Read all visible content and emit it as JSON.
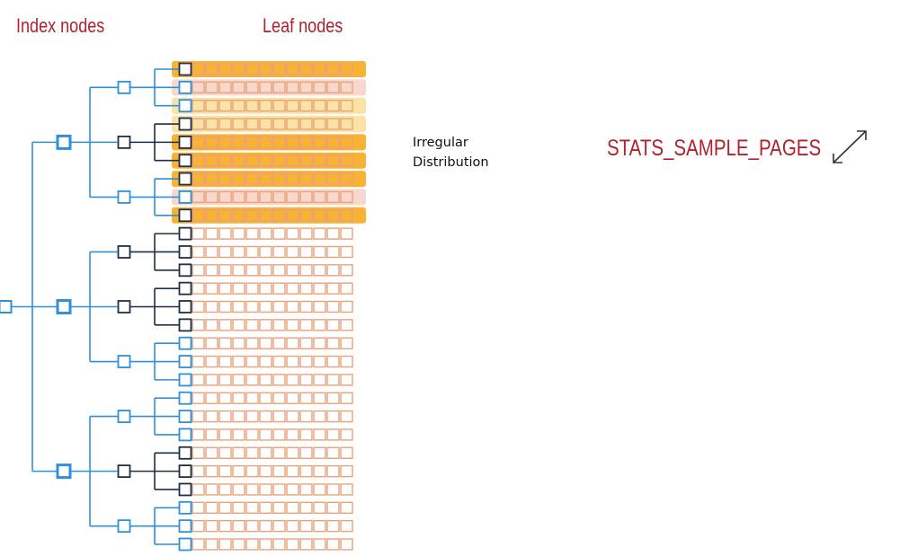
{
  "labels": {
    "index_nodes": "Index nodes",
    "leaf_nodes": "Leaf nodes",
    "parameter": "STATS_SAMPLE_PAGES",
    "note_line1": "Irregular",
    "note_line2": "Distribution"
  },
  "colors": {
    "label_red": "#b0232e",
    "tree_blue": "#2f8fd8",
    "tree_dark": "#1f2f45",
    "leaf_outline": "#e8a27a",
    "highlight_strong": "#f9b233",
    "highlight_light": "#fde2a6",
    "highlight_pink": "#f8d8cc"
  },
  "tree": {
    "root_count": 1,
    "level1_count": 3,
    "level2_per_parent": 3,
    "leaves_per_parent": 3,
    "cells_per_leaf": 12,
    "level2_dark": [
      false,
      true,
      false,
      true,
      true,
      false,
      false,
      true,
      false
    ],
    "leaf_highlight": [
      "strong",
      "pink",
      "light",
      "light",
      "strong",
      "strong",
      "strong",
      "pink",
      "strong",
      "none",
      "none",
      "none",
      "none",
      "none",
      "none",
      "none",
      "none",
      "none",
      "none",
      "none",
      "none",
      "none",
      "none",
      "none",
      "none",
      "none",
      "none"
    ],
    "leaf_dark_box": [
      true,
      false,
      false,
      true,
      true,
      true,
      true,
      false,
      true,
      true,
      true,
      true,
      true,
      true,
      true,
      false,
      false,
      false,
      false,
      false,
      false,
      true,
      true,
      true,
      false,
      false,
      false
    ]
  }
}
